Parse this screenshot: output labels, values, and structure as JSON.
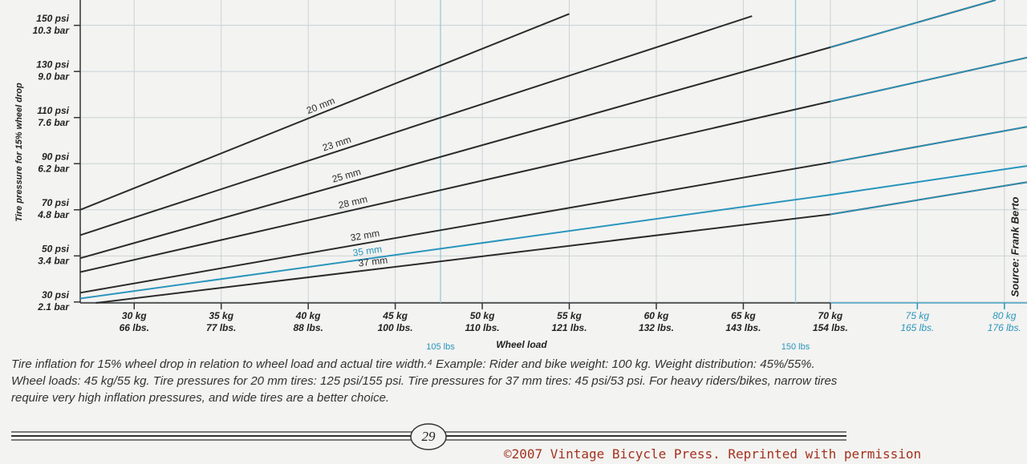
{
  "chart_data": {
    "type": "line",
    "x_label": "Wheel load",
    "y_label": "Tire pressure for 15% wheel drop",
    "source": "Source: Frank Berto",
    "xlim": [
      26.9,
      81.3
    ],
    "ylim": [
      29.6,
      161
    ],
    "xticks": [
      {
        "value": 30,
        "label": "30 kg"
      },
      {
        "value": 35,
        "label": "35 kg"
      },
      {
        "value": 40,
        "label": "40 kg"
      },
      {
        "value": 45,
        "label": "45 kg"
      },
      {
        "value": 50,
        "label": "50 kg"
      },
      {
        "value": 55,
        "label": "55 kg"
      },
      {
        "value": 60,
        "label": "60 kg"
      },
      {
        "value": 65,
        "label": "65 kg"
      },
      {
        "value": 70,
        "label": "70 kg"
      },
      {
        "value": 75,
        "label": "75 kg"
      },
      {
        "value": 80,
        "label": "80 kg"
      }
    ],
    "xticks_secondary": [
      "66 lbs.",
      "77 lbs.",
      "88 lbs.",
      "100 lbs.",
      "110 lbs.",
      "121 lbs.",
      "132 lbs.",
      "143 lbs.",
      "154 lbs.",
      "165 lbs.",
      "176 lbs."
    ],
    "yticks": [
      {
        "value": 30,
        "label": "30 psi"
      },
      {
        "value": 50,
        "label": "50 psi"
      },
      {
        "value": 70,
        "label": "70 psi"
      },
      {
        "value": 90,
        "label": "90 psi"
      },
      {
        "value": 110,
        "label": "110 psi"
      },
      {
        "value": 130,
        "label": "130 psi"
      },
      {
        "value": 150,
        "label": "150 psi"
      }
    ],
    "yticks_secondary": [
      "2.1 bar",
      "3.4 bar",
      "4.8 bar",
      "6.2 bar",
      "7.6 bar",
      "9.0 bar",
      "10.3 bar"
    ],
    "markers": [
      {
        "value": 47.6,
        "label": "105 lbs"
      },
      {
        "value": 68,
        "label": "150 lbs"
      }
    ],
    "grid": true,
    "extension_from": 70,
    "extension_color": "#2a95bd",
    "series": [
      {
        "name": "20 mm",
        "color": "#2b2b2b",
        "x": [
          26.9,
          55
        ],
        "values": [
          70,
          155
        ]
      },
      {
        "name": "23 mm",
        "color": "#2b2b2b",
        "x": [
          26.9,
          65.5
        ],
        "values": [
          59,
          154
        ]
      },
      {
        "name": "25 mm",
        "color": "#2b2b2b",
        "x": [
          26.9,
          70,
          79.5
        ],
        "values": [
          49,
          140.5,
          161
        ]
      },
      {
        "name": "28 mm",
        "color": "#2b2b2b",
        "x": [
          26.9,
          70,
          81.3
        ],
        "values": [
          43,
          117,
          136
        ]
      },
      {
        "name": "32 mm",
        "color": "#2b2b2b",
        "x": [
          26.9,
          70,
          81.3
        ],
        "values": [
          34,
          90.5,
          106
        ]
      },
      {
        "name": "35 mm",
        "color": "#2a95bd",
        "x": [
          26.9,
          70,
          81.3
        ],
        "values": [
          31.5,
          76.5,
          89
        ]
      },
      {
        "name": "37 mm",
        "color": "#2b2b2b",
        "x": [
          27.8,
          70,
          81.3
        ],
        "values": [
          29.6,
          68,
          82
        ]
      }
    ]
  },
  "caption": "Tire inflation for 15% wheel drop in relation to wheel load and actual tire width.⁴ Example: Rider and bike weight: 100 kg. Weight distribution: 45%/55%. Wheel loads: 45 kg/55 kg. Tire pressures for 20 mm tires: 125 psi/155 psi. Tire pressures for 37 mm tires: 45 psi/53 psi. For heavy riders/bikes, narrow tires require very high inflation pressures, and wide tires are a better choice.",
  "page_number": "29",
  "copyright": "©2007 Vintage Bicycle Press. Reprinted with permission"
}
